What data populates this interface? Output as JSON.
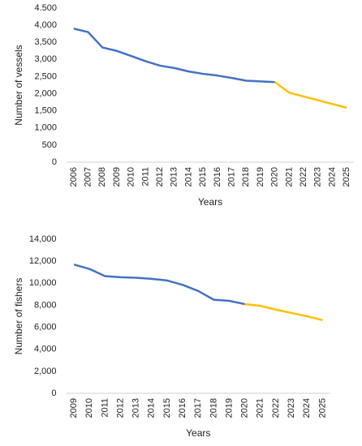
{
  "chart_data": [
    {
      "type": "line",
      "y_label": "Number of vessels",
      "x_label": "Years",
      "categories": [
        "2006",
        "2007",
        "2008",
        "2009",
        "2010",
        "2011",
        "2012",
        "2013",
        "2014",
        "2015",
        "2016",
        "2017",
        "2018",
        "2019",
        "2020",
        "2021",
        "2022",
        "2023",
        "2024",
        "2025"
      ],
      "series": [
        {
          "color": "#4472c4",
          "values": [
            3900,
            3800,
            3350,
            3250,
            3100,
            2950,
            2820,
            2750,
            2650,
            2580,
            2530,
            2460,
            2380,
            2360,
            2340,
            null,
            null,
            null,
            null,
            null
          ]
        },
        {
          "color": "#ffc000",
          "values": [
            null,
            null,
            null,
            null,
            null,
            null,
            null,
            null,
            null,
            null,
            null,
            null,
            null,
            null,
            2340,
            2030,
            1920,
            1810,
            1700,
            1590
          ]
        }
      ],
      "ylim": [
        0,
        4500
      ],
      "yticks": [
        0,
        500,
        {
          "value": 1000,
          "label": "1,000"
        },
        {
          "value": 1500,
          "label": "1,500"
        },
        {
          "value": 2000,
          "label": "2,000"
        },
        {
          "value": 2500,
          "label": "2,500"
        },
        {
          "value": 3000,
          "label": "3,000"
        },
        {
          "value": 3500,
          "label": "3,500"
        },
        {
          "value": 4000,
          "label": "4,000"
        },
        {
          "value": 4500,
          "label": "4.500"
        }
      ]
    },
    {
      "type": "line",
      "y_label": "Number of fishers",
      "x_label": "Years",
      "categories": [
        "2009",
        "2010",
        "2011",
        "2012",
        "2013",
        "2014",
        "2015",
        "2016",
        "2017",
        "2018",
        "2019",
        "2020",
        "2021",
        "2022",
        "2023",
        "2024",
        "2025"
      ],
      "series": [
        {
          "color": "#4472c4",
          "values": [
            11700,
            11300,
            10650,
            10550,
            10500,
            10400,
            10250,
            9850,
            9300,
            8500,
            8400,
            8100,
            null,
            null,
            null,
            null,
            null
          ]
        },
        {
          "color": "#ffc000",
          "values": [
            null,
            null,
            null,
            null,
            null,
            null,
            null,
            null,
            null,
            null,
            null,
            8100,
            7950,
            7600,
            7300,
            7000,
            6650
          ]
        }
      ],
      "ylim": [
        0,
        14000
      ],
      "yticks": [
        0,
        {
          "value": 2000,
          "label": "2,000"
        },
        {
          "value": 4000,
          "label": "4,000"
        },
        {
          "value": 6000,
          "label": "6,000"
        },
        {
          "value": 8000,
          "label": "8,000"
        },
        {
          "value": 10000,
          "label": "10,000"
        },
        {
          "value": 12000,
          "label": "12,000"
        },
        {
          "value": 14000,
          "label": "14,000"
        }
      ]
    }
  ]
}
